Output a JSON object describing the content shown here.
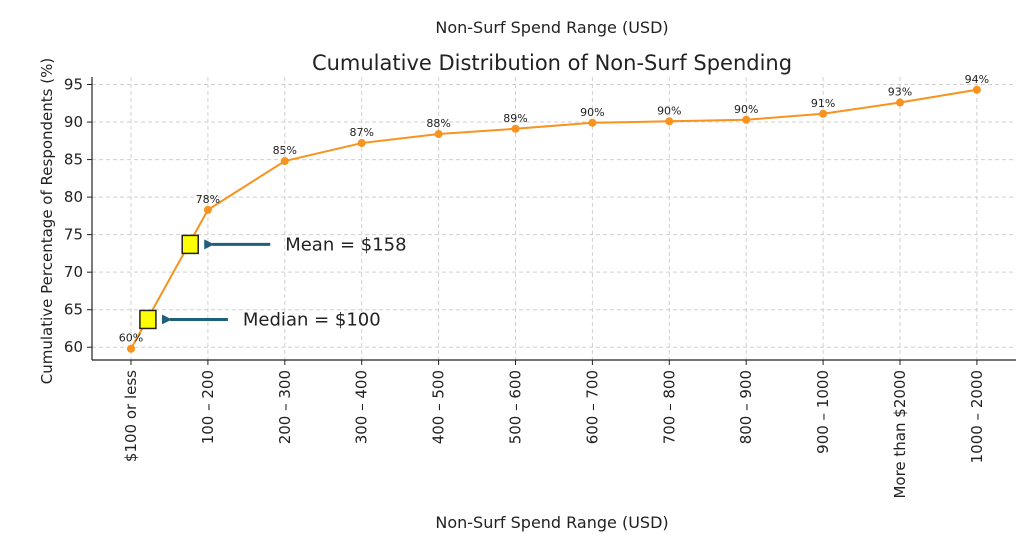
{
  "chart_data": {
    "type": "line",
    "top_label": "Non-Surf Spend Range (USD)",
    "title": "Cumulative Distribution of Non-Surf Spending",
    "xlabel": "Non-Surf Spend Range (USD)",
    "ylabel": "Cumulative Percentage of Respondents (%)",
    "categories": [
      "$100 or less",
      "100 – 200",
      "200 – 300",
      "300 – 400",
      "400 – 500",
      "500 – 600",
      "600 – 700",
      "700 – 800",
      "800 – 900",
      "900 – 1000",
      "More than $2000",
      "1000 – 2000"
    ],
    "values": [
      59.8,
      78.3,
      84.8,
      87.2,
      88.4,
      89.1,
      89.9,
      90.1,
      90.3,
      91.1,
      92.6,
      94.3
    ],
    "data_labels": [
      "60%",
      "78%",
      "85%",
      "87%",
      "88%",
      "89%",
      "90%",
      "90%",
      "90%",
      "91%",
      "93%",
      "94%"
    ],
    "ylim": [
      58.3,
      96
    ],
    "yticks": [
      60,
      65,
      70,
      75,
      80,
      85,
      90,
      95
    ],
    "grid": true,
    "line_color": "#f7931e",
    "annotations": [
      {
        "name": "mean",
        "text": "Mean = $158",
        "x_index": 0.77,
        "y": 73.7,
        "marker_color": "#ffff00",
        "arrow_color": "#1f5f7a"
      },
      {
        "name": "median",
        "text": "Median = $100",
        "x_index": 0.22,
        "y": 63.7,
        "marker_color": "#ffff00",
        "arrow_color": "#1f5f7a"
      }
    ]
  }
}
